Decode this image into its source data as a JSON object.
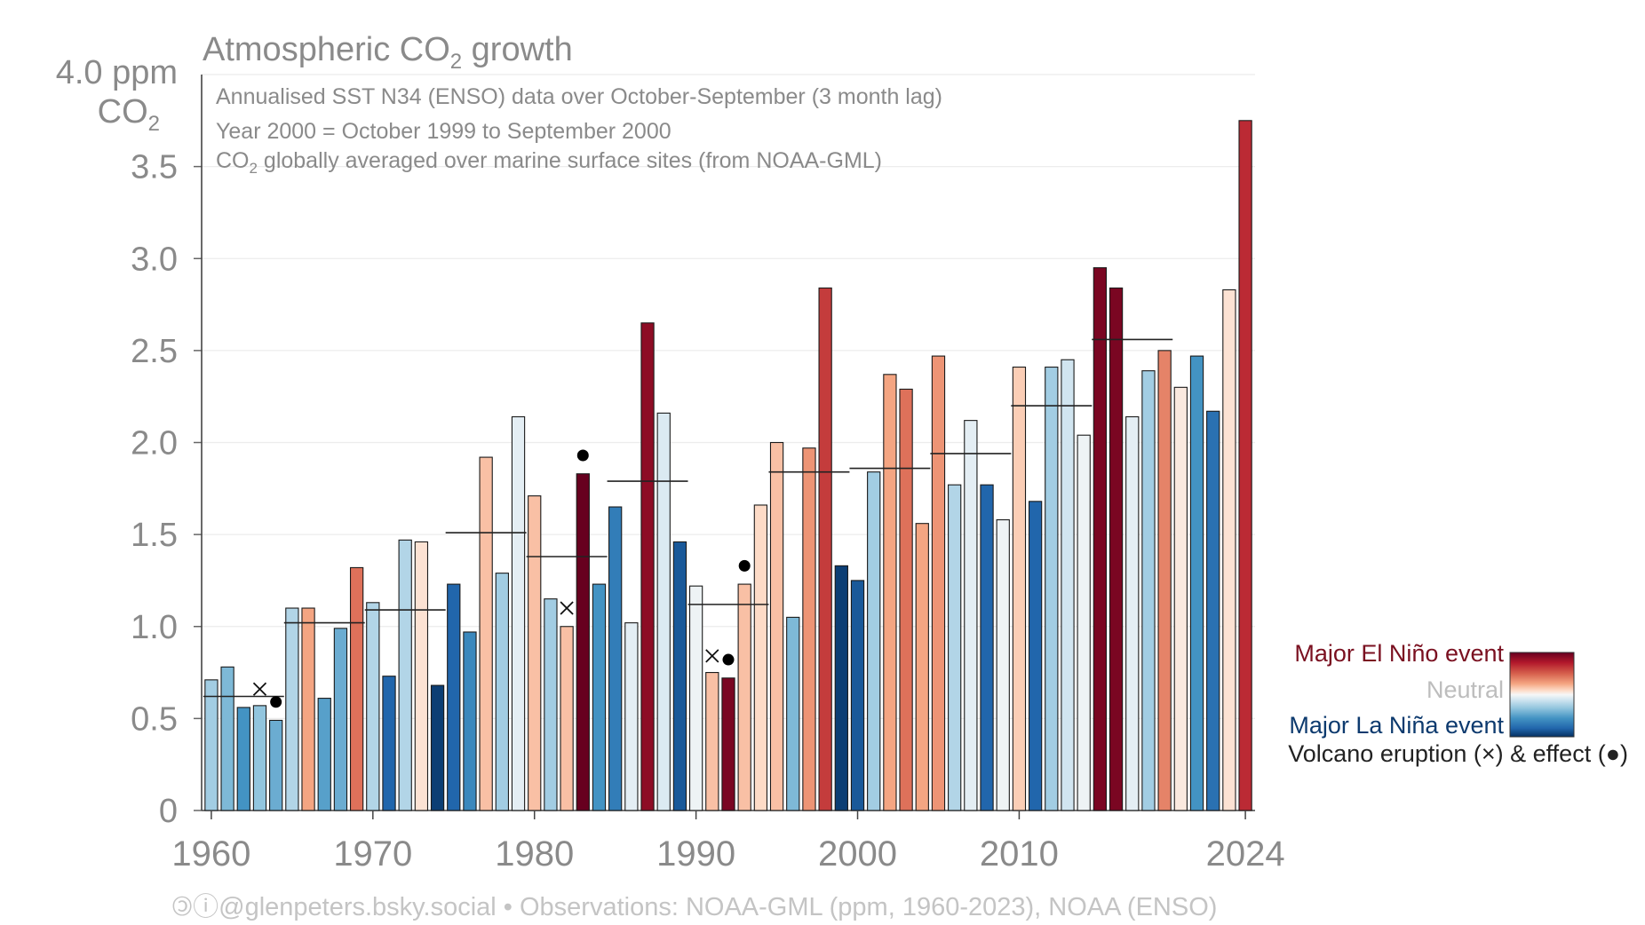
{
  "chart_data": {
    "type": "bar",
    "title_main": "Atmospheric CO",
    "title_sub": "2",
    "title_tail": " growth",
    "notes": {
      "line1": "Annualised SST N34 (ENSO) data over October-September (3 month lag)",
      "line2": "Year 2000 = October 1999 to September 2000",
      "line3_pre": "CO",
      "line3_sub": "2",
      "line3_post": " globally averaged over marine surface sites (from NOAA-GML)"
    },
    "ylabel_top": "4.0 ppm",
    "ylabel_co": "CO",
    "ylabel_sub": "2",
    "ylim": [
      0,
      4.0
    ],
    "yticks": [
      "0",
      "0.5",
      "1.0",
      "1.5",
      "2.0",
      "2.5",
      "3.0",
      "3.5"
    ],
    "ytick_values": [
      0,
      0.5,
      1.0,
      1.5,
      2.0,
      2.5,
      3.0,
      3.5,
      4.0
    ],
    "xticks": [
      "1960",
      "1970",
      "1980",
      "1990",
      "2000",
      "2010",
      "2024"
    ],
    "xtick_values": [
      1960,
      1970,
      1980,
      1990,
      2000,
      2010,
      2024
    ],
    "xlim": [
      1959.4,
      2024.6
    ],
    "grid": true,
    "legend": {
      "placement": "bottom-right",
      "el_nino": "Major El Niño event",
      "neutral": "Neutral",
      "la_nina": "Major La Niña event",
      "volcano": "Volcano eruption (×) & effect (●)"
    },
    "colors": {
      "el_nino_text": "#7a1020",
      "la_nina_text": "#0d3a6e",
      "neutral_text": "#bdbdbd",
      "scale": [
        "#053061",
        "#2166ac",
        "#4393c3",
        "#92c5de",
        "#d1e5f0",
        "#f7f7f7",
        "#fddbc7",
        "#f4a582",
        "#d6604d",
        "#b2182b",
        "#67001f"
      ]
    },
    "years": [
      1960,
      1961,
      1962,
      1963,
      1964,
      1965,
      1966,
      1967,
      1968,
      1969,
      1970,
      1971,
      1972,
      1973,
      1974,
      1975,
      1976,
      1977,
      1978,
      1979,
      1980,
      1981,
      1982,
      1983,
      1984,
      1985,
      1986,
      1987,
      1988,
      1989,
      1990,
      1991,
      1992,
      1993,
      1994,
      1995,
      1996,
      1997,
      1998,
      1999,
      2000,
      2001,
      2002,
      2003,
      2004,
      2005,
      2006,
      2007,
      2008,
      2009,
      2010,
      2011,
      2012,
      2013,
      2014,
      2015,
      2016,
      2017,
      2018,
      2019,
      2020,
      2021,
      2022,
      2023,
      2024
    ],
    "values": [
      0.71,
      0.78,
      0.56,
      0.57,
      0.49,
      1.1,
      1.1,
      0.61,
      0.99,
      1.32,
      1.13,
      0.73,
      1.47,
      1.46,
      0.68,
      1.23,
      0.97,
      1.92,
      1.29,
      2.14,
      1.71,
      1.15,
      1.0,
      1.83,
      1.23,
      1.65,
      1.02,
      2.65,
      2.16,
      1.46,
      1.22,
      0.75,
      0.72,
      1.23,
      1.66,
      2.0,
      1.05,
      1.97,
      2.84,
      1.33,
      1.25,
      1.84,
      2.37,
      2.29,
      1.56,
      2.47,
      1.77,
      2.12,
      1.77,
      1.58,
      2.41,
      1.68,
      2.41,
      2.45,
      2.04,
      2.95,
      2.84,
      2.14,
      2.39,
      2.5,
      2.3,
      2.47,
      2.17,
      2.83,
      3.75
    ],
    "enso": [
      -0.35,
      -0.45,
      -0.6,
      -0.4,
      -0.5,
      -0.3,
      0.4,
      -0.55,
      -0.5,
      0.55,
      -0.3,
      -0.8,
      -0.3,
      0.15,
      -0.95,
      -0.8,
      -0.65,
      0.3,
      -0.35,
      -0.1,
      0.3,
      -0.35,
      0.3,
      1.0,
      -0.6,
      -0.7,
      -0.1,
      0.9,
      -0.15,
      -0.85,
      -0.05,
      0.3,
      0.95,
      0.3,
      0.2,
      0.3,
      -0.45,
      0.45,
      0.7,
      -0.95,
      -0.85,
      -0.35,
      0.4,
      0.55,
      0.4,
      0.45,
      -0.3,
      -0.1,
      -0.8,
      -0.05,
      0.25,
      -0.8,
      -0.35,
      -0.2,
      -0.05,
      0.95,
      0.95,
      -0.1,
      -0.35,
      0.5,
      0.1,
      -0.6,
      -0.75,
      0.15,
      0.75
    ],
    "decade_means": [
      {
        "start": 1960,
        "end": 1964,
        "value": 0.62
      },
      {
        "start": 1965,
        "end": 1969,
        "value": 1.02
      },
      {
        "start": 1970,
        "end": 1974,
        "value": 1.09
      },
      {
        "start": 1975,
        "end": 1979,
        "value": 1.51
      },
      {
        "start": 1980,
        "end": 1984,
        "value": 1.38
      },
      {
        "start": 1985,
        "end": 1989,
        "value": 1.79
      },
      {
        "start": 1990,
        "end": 1994,
        "value": 1.12
      },
      {
        "start": 1995,
        "end": 1999,
        "value": 1.84
      },
      {
        "start": 2000,
        "end": 2004,
        "value": 1.86
      },
      {
        "start": 2005,
        "end": 2009,
        "value": 1.94
      },
      {
        "start": 2010,
        "end": 2014,
        "value": 2.2
      },
      {
        "start": 2015,
        "end": 2019,
        "value": 2.56
      }
    ],
    "volcano_eruptions": [
      {
        "year": 1963,
        "value": 0.66
      },
      {
        "year": 1982,
        "value": 1.1
      },
      {
        "year": 1991,
        "value": 0.84
      }
    ],
    "volcano_effects": [
      {
        "year": 1964,
        "value": 0.59
      },
      {
        "year": 1983,
        "value": 1.93
      },
      {
        "year": 1992,
        "value": 0.82
      },
      {
        "year": 1993,
        "value": 1.33
      }
    ],
    "footer": "🄯ⓘ@glenpeters.bsky.social  •  Observations: NOAA-GML (ppm, 1960-2023), NOAA (ENSO)"
  }
}
